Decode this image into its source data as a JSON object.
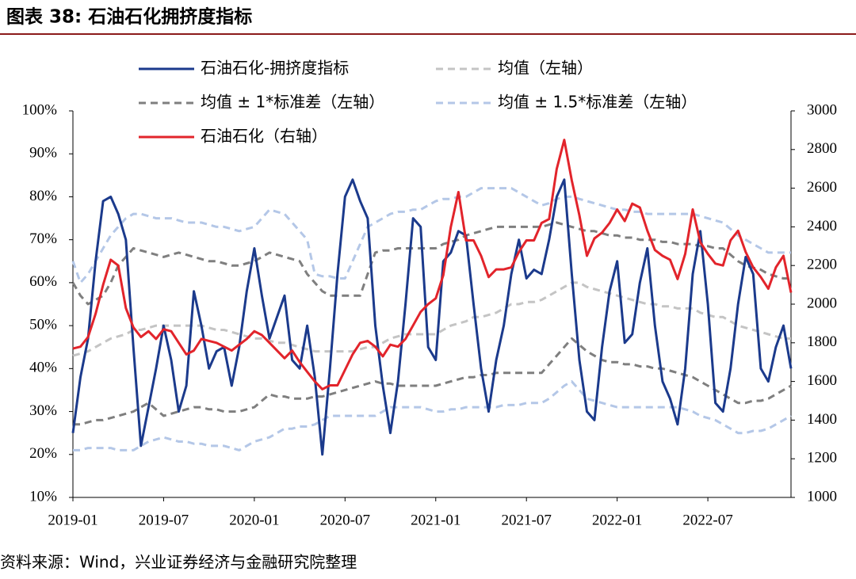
{
  "chart_data": {
    "type": "line",
    "title": "图表 38:  石油石化拥挤度指标",
    "source": "资料来源：Wind，兴业证券经济与金融研究院整理",
    "xlim": [
      0,
      47.5
    ],
    "xticks": [
      {
        "value": 0,
        "label": "2019-01"
      },
      {
        "value": 6,
        "label": "2019-07"
      },
      {
        "value": 12,
        "label": "2020-01"
      },
      {
        "value": 18,
        "label": "2020-07"
      },
      {
        "value": 24,
        "label": "2021-01"
      },
      {
        "value": 30,
        "label": "2021-07"
      },
      {
        "value": 36,
        "label": "2022-01"
      },
      {
        "value": 42,
        "label": "2022-07"
      }
    ],
    "ylim": [
      10,
      100
    ],
    "yticks": [
      {
        "value": 10,
        "label": "10%"
      },
      {
        "value": 20,
        "label": "20%"
      },
      {
        "value": 30,
        "label": "30%"
      },
      {
        "value": 40,
        "label": "40%"
      },
      {
        "value": 50,
        "label": "50%"
      },
      {
        "value": 60,
        "label": "60%"
      },
      {
        "value": 70,
        "label": "70%"
      },
      {
        "value": 80,
        "label": "80%"
      },
      {
        "value": 90,
        "label": "90%"
      },
      {
        "value": 100,
        "label": "100%"
      }
    ],
    "y2lim": [
      1000,
      3000
    ],
    "y2ticks": [
      1000,
      1200,
      1400,
      1600,
      1800,
      2000,
      2200,
      2400,
      2600,
      2800,
      3000
    ],
    "legend": "top",
    "x": [
      0,
      0.5,
      1,
      1.5,
      2,
      2.5,
      3,
      3.5,
      4,
      4.5,
      5,
      5.5,
      6,
      6.5,
      7,
      7.5,
      8,
      8.5,
      9,
      9.5,
      10,
      10.5,
      11,
      11.5,
      12,
      12.5,
      13,
      13.5,
      14,
      14.5,
      15,
      15.5,
      16,
      16.5,
      17,
      17.5,
      18,
      18.5,
      19,
      19.5,
      20,
      20.5,
      21,
      21.5,
      22,
      22.5,
      23,
      23.5,
      24,
      24.5,
      25,
      25.5,
      26,
      26.5,
      27,
      27.5,
      28,
      28.5,
      29,
      29.5,
      30,
      30.5,
      31,
      31.5,
      32,
      32.5,
      33,
      33.5,
      34,
      34.5,
      35,
      35.5,
      36,
      36.5,
      37,
      37.5,
      38,
      38.5,
      39,
      39.5,
      40,
      40.5,
      41,
      41.5,
      42,
      42.5,
      43,
      43.5,
      44,
      44.5,
      45,
      45.5,
      46,
      46.5,
      47,
      47.5
    ],
    "series": [
      {
        "name": "石油石化-拥挤度指标",
        "color": "#1b3a8c",
        "dashed": false,
        "width": 3,
        "values": [
          25,
          38,
          47,
          65,
          79,
          80,
          76,
          70,
          45,
          22,
          31,
          40,
          50,
          42,
          30,
          36,
          58,
          50,
          40,
          44,
          45,
          36,
          45,
          58,
          68,
          57,
          47,
          52,
          57,
          42,
          40,
          50,
          38,
          20,
          40,
          62,
          80,
          84,
          79,
          75,
          50,
          36,
          25,
          37,
          55,
          75,
          73,
          45,
          42,
          65,
          67,
          72,
          71,
          55,
          40,
          30,
          42,
          50,
          62,
          70,
          61,
          63,
          62,
          70,
          80,
          84,
          62,
          42,
          30,
          28,
          45,
          58,
          65,
          46,
          48,
          60,
          68,
          50,
          37,
          33,
          27,
          40,
          62,
          72,
          55,
          32,
          30,
          40,
          55,
          66,
          62,
          40,
          37,
          45,
          50,
          40
        ]
      },
      {
        "name": "均值（左轴）",
        "color": "#c4c4c4",
        "dashed": true,
        "width": 3,
        "values": [
          43,
          43.5,
          44,
          45,
          46,
          47,
          47.5,
          48,
          49,
          49,
          49.5,
          50,
          50,
          50,
          50,
          50,
          50,
          50,
          49.5,
          49,
          49,
          48.5,
          48,
          47.5,
          47,
          47,
          46.5,
          46,
          46,
          45.5,
          45,
          44.5,
          44,
          44,
          44,
          44,
          44,
          44,
          44.5,
          45,
          45,
          46,
          47,
          47.5,
          48,
          48,
          48,
          48,
          48,
          49,
          50,
          50.5,
          51,
          52,
          52,
          52.5,
          53,
          54,
          55,
          55,
          55.5,
          55.5,
          56,
          57,
          58,
          59,
          60,
          60,
          59,
          58.5,
          58,
          57.5,
          57,
          56.5,
          56,
          55.5,
          55,
          55,
          54.5,
          54.5,
          54,
          54,
          54,
          53,
          52.5,
          52,
          52,
          51,
          50,
          49.5,
          49,
          48.5,
          48,
          47.5,
          47,
          47
        ]
      },
      {
        "name": "均值 ± 1*标准差（左轴）",
        "color": "#7f7f7f",
        "dashed": true,
        "width": 3,
        "values": [
          60,
          57,
          55,
          56,
          57,
          60,
          64,
          66,
          68,
          67.5,
          67,
          66.5,
          66,
          66.5,
          67,
          66.5,
          66,
          65.5,
          65,
          65,
          64.5,
          64,
          64,
          64.5,
          65,
          66,
          67,
          66.5,
          66,
          65.5,
          65,
          62,
          60,
          58,
          57,
          57,
          57,
          57,
          57,
          62,
          67,
          67.5,
          67.5,
          68,
          68,
          68,
          68,
          68,
          68,
          69,
          69.5,
          70,
          71,
          71.5,
          72,
          72.5,
          73,
          73,
          73,
          73,
          73,
          73,
          73,
          73.5,
          74,
          73.5,
          73,
          72.5,
          72,
          72,
          71.5,
          71,
          71,
          70.5,
          70.5,
          70,
          70,
          70,
          69.5,
          69.5,
          69,
          69,
          69,
          68.5,
          68.5,
          68,
          68,
          66.5,
          65,
          64,
          63.5,
          63,
          62,
          61.5,
          61,
          61
        ]
      },
      {
        "name": "均值 ± 1*标准差（左轴）",
        "color": "#7f7f7f",
        "dashed": true,
        "width": 3,
        "values": [
          27,
          27,
          27.5,
          28,
          28,
          28.5,
          29,
          29.5,
          30,
          31,
          32,
          30.5,
          29,
          29.5,
          30,
          30.5,
          31,
          31,
          30.5,
          30.5,
          30,
          30,
          30,
          30.5,
          31,
          32.5,
          34,
          33.5,
          33.5,
          33,
          33,
          33,
          33.5,
          33.5,
          34,
          34.5,
          35,
          35.5,
          36,
          36.5,
          37,
          36.5,
          36.5,
          36,
          36,
          36,
          36,
          36,
          36,
          36.5,
          37,
          37.5,
          38,
          38,
          38.5,
          38.5,
          39,
          39,
          39,
          39,
          39,
          39,
          39,
          41,
          43,
          45,
          47,
          45.5,
          44,
          43,
          42,
          41.5,
          41.5,
          41,
          41,
          40.5,
          40.5,
          40,
          40,
          39.5,
          39,
          38.5,
          38,
          37,
          36,
          35,
          34,
          33,
          32,
          32,
          32.5,
          32.5,
          33,
          34,
          35,
          36
        ]
      },
      {
        "name": "均值 ± 1.5*标准差（左轴）",
        "color": "#b4c7e7",
        "dashed": true,
        "width": 3,
        "values": [
          65,
          60,
          62,
          65,
          68,
          71,
          73,
          75,
          76,
          76,
          75.5,
          75,
          75,
          75,
          74.5,
          74,
          74,
          74,
          73.5,
          73,
          73,
          72.5,
          72,
          72.5,
          73,
          75,
          77,
          76.5,
          76,
          74,
          72,
          70,
          62,
          61.5,
          61.5,
          61,
          61,
          65,
          69,
          73,
          74,
          75,
          76,
          76.5,
          76.5,
          77,
          77,
          78,
          79,
          79.5,
          79.5,
          80,
          80,
          81,
          82,
          82,
          82,
          82,
          82,
          81,
          80,
          79,
          78,
          78.5,
          79.5,
          80,
          80,
          79.5,
          79,
          78.5,
          78,
          77.5,
          77,
          77,
          76.5,
          76.5,
          76,
          76,
          76,
          76,
          76,
          76,
          76,
          75.5,
          75,
          74.5,
          74,
          72.5,
          71,
          70,
          69,
          68,
          67,
          67,
          67,
          67
        ]
      },
      {
        "name": "均值 ± 1.5*标准差（左轴）",
        "color": "#b4c7e7",
        "dashed": true,
        "width": 3,
        "values": [
          21,
          21,
          21.5,
          21.5,
          21.5,
          21.5,
          21,
          21,
          21,
          22,
          23,
          23.5,
          24,
          23.5,
          23,
          23,
          22.5,
          22.5,
          22,
          22,
          22,
          21.5,
          21,
          22,
          23,
          23.5,
          24,
          25,
          26,
          26,
          26.5,
          26.5,
          27,
          28,
          29,
          29,
          29,
          29,
          29,
          29,
          29,
          30,
          31,
          31,
          31,
          31,
          31,
          30.5,
          30,
          30,
          30.5,
          30.5,
          31,
          31,
          31,
          31,
          31,
          31.5,
          31.5,
          31.5,
          32,
          32,
          32,
          33,
          34.5,
          36,
          37,
          35,
          33,
          32.5,
          32,
          31.5,
          31,
          31,
          31,
          31,
          31,
          31,
          31,
          31,
          31,
          30.5,
          30,
          29,
          28.5,
          28,
          27,
          26,
          25,
          25,
          25.5,
          25.5,
          26,
          27,
          28,
          29
        ]
      },
      {
        "name": "石油石化（右轴）",
        "color": "#e2242b",
        "dashed": false,
        "width": 3,
        "axis": "y2",
        "values": [
          1770,
          1780,
          1830,
          1950,
          2100,
          2230,
          2200,
          1980,
          1880,
          1830,
          1860,
          1820,
          1870,
          1860,
          1800,
          1740,
          1760,
          1820,
          1810,
          1800,
          1780,
          1760,
          1790,
          1820,
          1860,
          1840,
          1800,
          1760,
          1720,
          1760,
          1700,
          1650,
          1600,
          1560,
          1580,
          1580,
          1660,
          1740,
          1800,
          1810,
          1780,
          1730,
          1790,
          1780,
          1820,
          1890,
          1960,
          2000,
          2030,
          2150,
          2400,
          2580,
          2330,
          2330,
          2250,
          2140,
          2180,
          2180,
          2190,
          2270,
          2330,
          2330,
          2420,
          2440,
          2700,
          2850,
          2640,
          2460,
          2250,
          2340,
          2370,
          2420,
          2490,
          2430,
          2520,
          2500,
          2380,
          2280,
          2250,
          2230,
          2130,
          2260,
          2490,
          2320,
          2260,
          2210,
          2200,
          2330,
          2380,
          2270,
          2190,
          2140,
          2080,
          2190,
          2250,
          2060
        ]
      }
    ]
  }
}
